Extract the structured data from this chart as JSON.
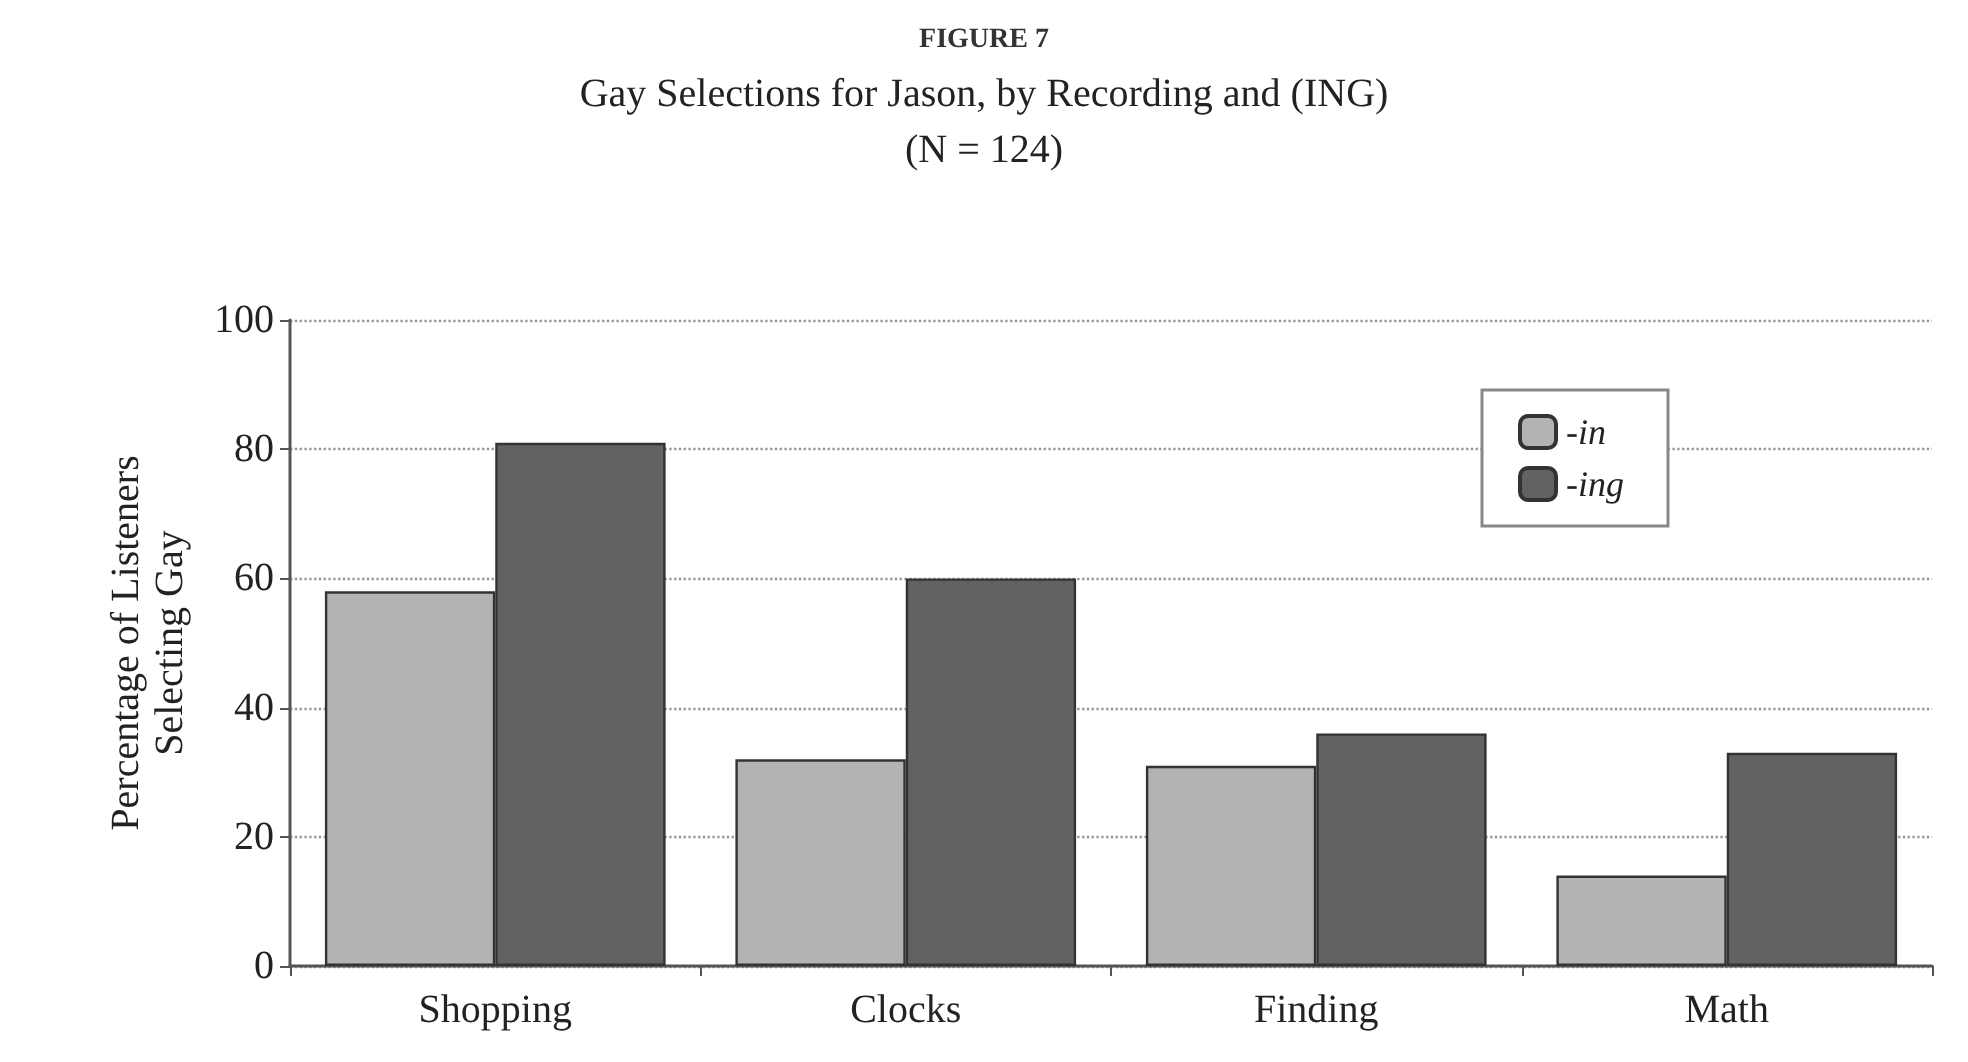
{
  "chart_data": {
    "type": "bar",
    "title": "FIGURE 7",
    "subtitle": "Gay Selections for Jason, by Recording and (ING)\n(N = 124)",
    "ylabel": "Percentage of Listeners\nSelecting Gay",
    "categories": [
      "Shopping",
      "Clocks",
      "Finding",
      "Math"
    ],
    "series": [
      {
        "name": "-in",
        "color": "#b3b3b3",
        "values": [
          58,
          32,
          31,
          14
        ]
      },
      {
        "name": "-ing",
        "color": "#626262",
        "values": [
          81,
          60,
          36,
          33
        ]
      }
    ],
    "ylim": [
      0,
      100
    ],
    "yticks": [
      0,
      20,
      40,
      60,
      80,
      100
    ],
    "grid": "y",
    "legend": "top right"
  }
}
